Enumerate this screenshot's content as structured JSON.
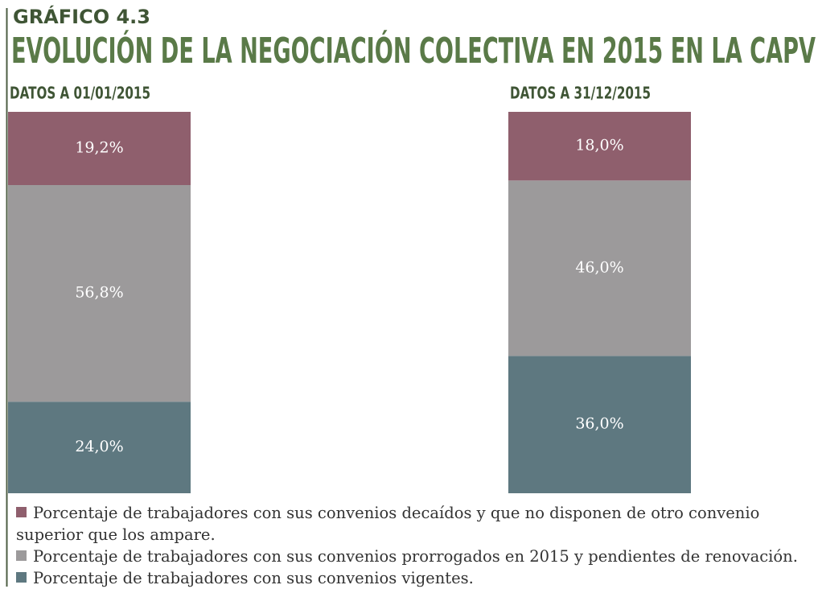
{
  "chart_data": {
    "type": "stacked_bar",
    "supertitle": "GRÁFICO 4.3",
    "title": "EVOLUCIÓN DE LA NEGOCIACIÓN COLECTIVA EN 2015 EN LA CAPV",
    "categories": [
      "DATOS A 01/01/2015",
      "DATOS A 31/12/2015"
    ],
    "series": [
      {
        "name": "Porcentaje de trabajadores con sus convenios decaídos y que no disponen de otro convenio superior que los ampare.",
        "color": "#8f5f6d",
        "values": [
          19.2,
          18.0
        ],
        "value_labels": [
          "19,2%",
          "18,0%"
        ]
      },
      {
        "name": "Porcentaje de trabajadores con sus convenios prorrogados en 2015 y pendientes de renovación.",
        "color": "#9c9a9b",
        "values": [
          56.8,
          46.0
        ],
        "value_labels": [
          "56,8%",
          "46,0%"
        ]
      },
      {
        "name": "Porcentaje de trabajadores con sus convenios vigentes.",
        "color": "#5e7880",
        "values": [
          24.0,
          36.0
        ],
        "value_labels": [
          "24,0%",
          "36,0%"
        ]
      }
    ],
    "ylim": [
      0,
      100
    ]
  }
}
